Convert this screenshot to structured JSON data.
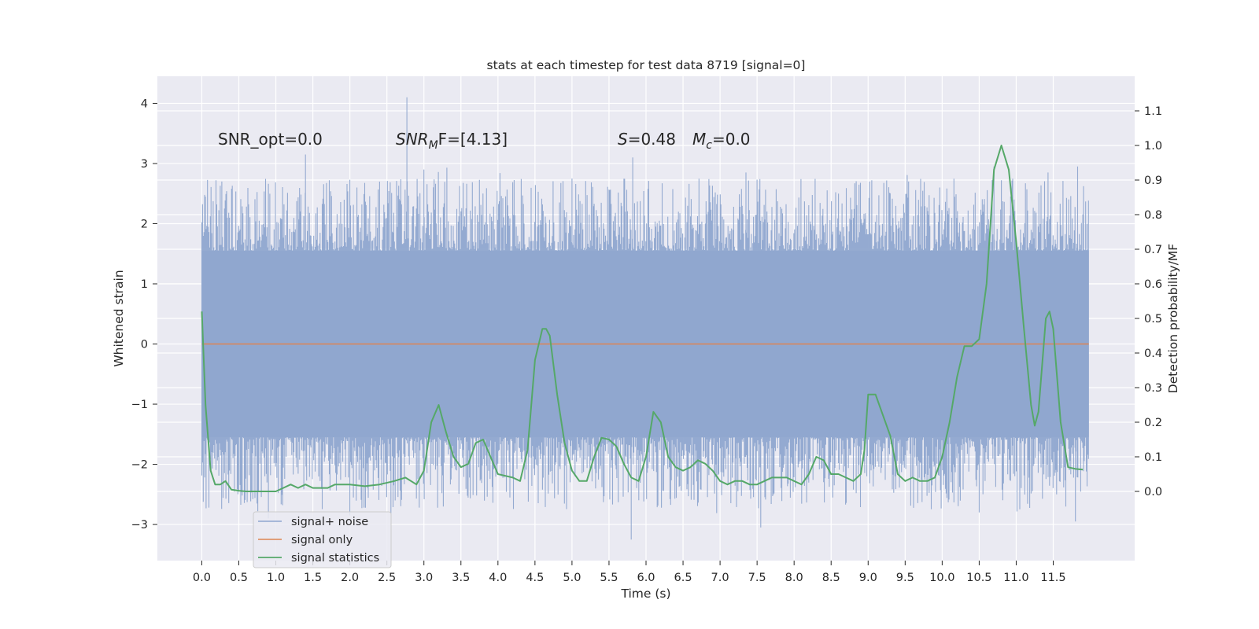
{
  "chart_data": {
    "type": "line",
    "title": "stats at each timestep for test data 8719 [signal=0]",
    "xlabel": "Time (s)",
    "ylabel_left": "Whitened strain",
    "ylabel_right": "Detection probability/MF",
    "xlim": [
      -0.6,
      12.6
    ],
    "ylim_left": [
      -3.6,
      4.45
    ],
    "ylim_right": [
      -0.2,
      1.2
    ],
    "x_ticks": [
      0.0,
      0.5,
      1.0,
      1.5,
      2.0,
      2.5,
      3.0,
      3.5,
      4.0,
      4.5,
      5.0,
      5.5,
      6.0,
      6.5,
      7.0,
      7.5,
      8.0,
      8.5,
      9.0,
      9.5,
      10.0,
      10.5,
      11.0,
      11.5
    ],
    "x_tick_labels": [
      "0.0",
      "0.5",
      "1.0",
      "1.5",
      "2.0",
      "2.5",
      "3.0",
      "3.5",
      "4.0",
      "4.5",
      "5.0",
      "5.5",
      "6.0",
      "6.5",
      "7.0",
      "7.5",
      "8.0",
      "8.5",
      "9.0",
      "9.5",
      "10.0",
      "10.5",
      "11.0",
      "11.5"
    ],
    "y_left_ticks": [
      4,
      3,
      2,
      1,
      0,
      -1,
      -2,
      -3
    ],
    "y_left_tick_labels": [
      "4",
      "3",
      "2",
      "1",
      "0",
      "−1",
      "−2",
      "−3"
    ],
    "y_right_ticks": [
      1.1,
      1.0,
      0.9,
      0.8,
      0.7,
      0.6,
      0.5,
      0.4,
      0.3,
      0.2,
      0.1,
      0.0
    ],
    "y_right_tick_labels": [
      "1.1",
      "1.0",
      "0.9",
      "0.8",
      "0.7",
      "0.6",
      "0.5",
      "0.4",
      "0.3",
      "0.2",
      "0.1",
      "0.0"
    ],
    "grid": true,
    "legend_position": "bottom-left",
    "annotations": {
      "snr_opt": "SNR_opt=0.0",
      "snr_mf_base": "SNR",
      "snr_mf_sub": "M",
      "snr_mf_rest": "F=[4.13]",
      "s_label": "S",
      "s_value": "=0.48",
      "mc_label": "M",
      "mc_sub": "c",
      "mc_value": "=0.0"
    },
    "series": [
      {
        "name": "signal+ noise",
        "color": "#8fa6cf",
        "axis": "left",
        "noise": {
          "x_start": 0.0,
          "x_end": 11.98,
          "band_low": -1.55,
          "band_high": 1.55,
          "max": 4.1,
          "min": -3.3,
          "peaks": [
            [
              0.27,
              2.7
            ],
            [
              1.4,
              3.15
            ],
            [
              2.77,
              4.1
            ],
            [
              3.0,
              2.9
            ],
            [
              5.0,
              2.75
            ],
            [
              5.82,
              3.1
            ],
            [
              7.35,
              2.85
            ],
            [
              8.6,
              2.5
            ],
            [
              10.7,
              2.95
            ],
            [
              11.43,
              2.85
            ],
            [
              11.83,
              2.95
            ]
          ],
          "troughs": [
            [
              0.9,
              -2.9
            ],
            [
              2.0,
              -2.85
            ],
            [
              5.8,
              -3.25
            ],
            [
              7.55,
              -3.05
            ],
            [
              10.5,
              -2.8
            ],
            [
              11.8,
              -2.95
            ]
          ]
        }
      },
      {
        "name": "signal only",
        "color": "#dd8452",
        "axis": "left",
        "x": [
          0.0,
          11.98
        ],
        "y": [
          0.0,
          0.0
        ]
      },
      {
        "name": "signal statistics",
        "color": "#55a868",
        "axis": "right",
        "x": [
          0.0,
          0.05,
          0.12,
          0.18,
          0.25,
          0.32,
          0.4,
          0.5,
          0.6,
          0.8,
          1.0,
          1.1,
          1.2,
          1.3,
          1.4,
          1.5,
          1.6,
          1.7,
          1.8,
          2.0,
          2.2,
          2.4,
          2.6,
          2.75,
          2.9,
          3.0,
          3.1,
          3.2,
          3.3,
          3.4,
          3.5,
          3.6,
          3.7,
          3.8,
          3.9,
          4.0,
          4.2,
          4.3,
          4.4,
          4.5,
          4.6,
          4.65,
          4.7,
          4.8,
          4.9,
          5.0,
          5.1,
          5.2,
          5.3,
          5.4,
          5.5,
          5.6,
          5.7,
          5.8,
          5.9,
          6.0,
          6.1,
          6.2,
          6.3,
          6.4,
          6.5,
          6.6,
          6.7,
          6.8,
          6.9,
          7.0,
          7.1,
          7.2,
          7.3,
          7.4,
          7.5,
          7.6,
          7.7,
          7.8,
          7.9,
          8.0,
          8.1,
          8.2,
          8.3,
          8.4,
          8.5,
          8.6,
          8.7,
          8.8,
          8.9,
          8.95,
          9.0,
          9.1,
          9.2,
          9.3,
          9.4,
          9.5,
          9.6,
          9.7,
          9.8,
          9.9,
          10.0,
          10.1,
          10.2,
          10.3,
          10.4,
          10.5,
          10.6,
          10.7,
          10.8,
          10.9,
          11.0,
          11.1,
          11.2,
          11.25,
          11.3,
          11.4,
          11.45,
          11.5,
          11.6,
          11.7,
          11.8,
          11.9
        ],
        "y": [
          0.52,
          0.25,
          0.06,
          0.02,
          0.02,
          0.03,
          0.005,
          0.002,
          0.0,
          0.0,
          0.0,
          0.01,
          0.02,
          0.01,
          0.02,
          0.01,
          0.01,
          0.01,
          0.02,
          0.02,
          0.015,
          0.02,
          0.03,
          0.04,
          0.02,
          0.06,
          0.2,
          0.25,
          0.17,
          0.1,
          0.07,
          0.08,
          0.14,
          0.15,
          0.1,
          0.05,
          0.04,
          0.03,
          0.12,
          0.38,
          0.47,
          0.47,
          0.45,
          0.28,
          0.14,
          0.06,
          0.03,
          0.03,
          0.1,
          0.155,
          0.15,
          0.13,
          0.08,
          0.04,
          0.03,
          0.1,
          0.23,
          0.2,
          0.1,
          0.07,
          0.06,
          0.07,
          0.09,
          0.08,
          0.06,
          0.03,
          0.02,
          0.03,
          0.03,
          0.02,
          0.02,
          0.03,
          0.04,
          0.04,
          0.04,
          0.03,
          0.02,
          0.05,
          0.1,
          0.09,
          0.05,
          0.05,
          0.04,
          0.03,
          0.05,
          0.12,
          0.28,
          0.28,
          0.22,
          0.16,
          0.05,
          0.03,
          0.04,
          0.03,
          0.03,
          0.04,
          0.1,
          0.2,
          0.33,
          0.42,
          0.42,
          0.44,
          0.6,
          0.93,
          1.0,
          0.93,
          0.72,
          0.48,
          0.25,
          0.19,
          0.23,
          0.5,
          0.52,
          0.47,
          0.2,
          0.07,
          0.065,
          0.063
        ]
      }
    ]
  }
}
